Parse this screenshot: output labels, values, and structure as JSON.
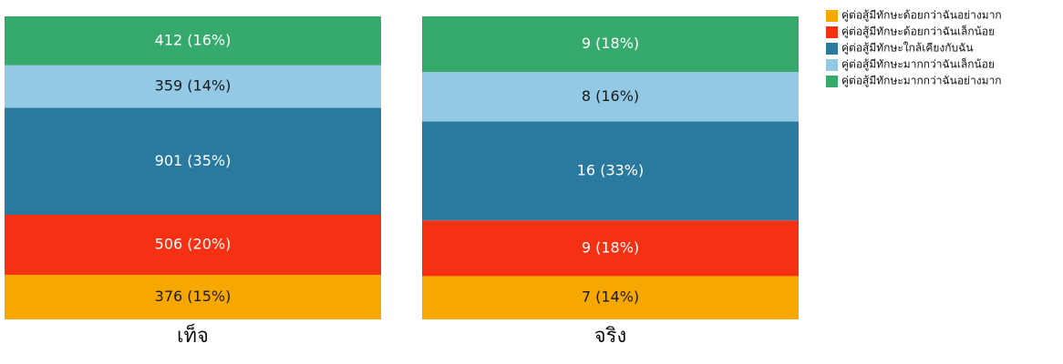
{
  "chart_data": {
    "type": "stacked-bar-100",
    "categories": [
      "เท็จ",
      "จริง"
    ],
    "series": [
      {
        "name": "คู่ต่อสู้มีทักษะด้อยกว่าฉันอย่างมาก",
        "color": "#f7a800",
        "values": [
          376,
          7
        ],
        "value_labels": [
          "376 (15%)",
          "7 (14%)"
        ]
      },
      {
        "name": "คู่ต่อสู้มีทักษะด้อยกว่าฉันเล็กน้อย",
        "color": "#f53114",
        "values": [
          506,
          9
        ],
        "value_labels": [
          "506 (20%)",
          "9 (18%)"
        ]
      },
      {
        "name": "คู่ต่อสู้มีทักษะใกล้เคียงกับฉัน",
        "color": "#2a7aa0",
        "values": [
          901,
          16
        ],
        "value_labels": [
          "901 (35%)",
          "16 (33%)"
        ]
      },
      {
        "name": "คู่ต่อสู้มีทักษะมากกว่าฉันเล็กน้อย",
        "color": "#94c9e6",
        "values": [
          359,
          8
        ],
        "value_labels": [
          "359 (14%)",
          "8 (16%)"
        ]
      },
      {
        "name": "คู่ต่อสู้มีทักษะมากกว่าฉันอย่างมาก",
        "color": "#36a96d",
        "values": [
          412,
          9
        ],
        "value_labels": [
          "412 (16%)",
          "9 (18%)"
        ]
      }
    ]
  }
}
